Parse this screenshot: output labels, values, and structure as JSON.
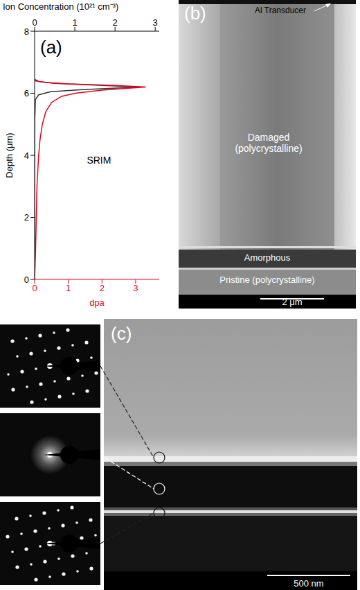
{
  "chart_data": {
    "type": "line",
    "panel": "(a)",
    "annotation": "SRIM",
    "xlabel": "dpa",
    "x2label": "Ion Concentration (10²¹ cm⁻³)",
    "ylabel": "Depth (μm)",
    "xlim": [
      0,
      3.7
    ],
    "xticks": [
      0,
      1,
      2,
      3
    ],
    "x2lim": [
      0,
      3.1
    ],
    "x2ticks": [
      0,
      1,
      2,
      3
    ],
    "ylim": [
      8,
      0
    ],
    "yticks": [
      0,
      2,
      4,
      6,
      8
    ],
    "grid": false,
    "series": [
      {
        "color": "#333333",
        "axis": "x2",
        "y": [
          0,
          5,
          5.8,
          5.95,
          6.05,
          6.12,
          6.2,
          6.26,
          6.32,
          6.38,
          6.45
        ],
        "values": [
          0,
          0,
          0.02,
          0.1,
          0.4,
          1.2,
          2.6,
          1.5,
          0.5,
          0.1,
          0
        ]
      },
      {
        "color": "#e8001c",
        "axis": "x",
        "y": [
          0,
          1,
          2,
          3,
          4,
          4.5,
          5,
          5.4,
          5.7,
          5.9,
          6.0,
          6.1,
          6.2,
          6.25,
          6.3,
          6.35,
          6.4
        ],
        "values": [
          0,
          0.03,
          0.05,
          0.07,
          0.12,
          0.16,
          0.23,
          0.33,
          0.5,
          0.8,
          1.2,
          2.0,
          3.3,
          2.4,
          1.0,
          0.3,
          0
        ]
      }
    ]
  },
  "micrographs": [
    {
      "label": "(b)",
      "labels": [
        "Al Transducer",
        "Damaged (polycrystalline)",
        "Amorphous",
        "Pristine (polycrystalline)"
      ],
      "scale_bar": "2 μm"
    },
    {
      "label": "(c)",
      "scale_bar": "500 nm"
    }
  ]
}
